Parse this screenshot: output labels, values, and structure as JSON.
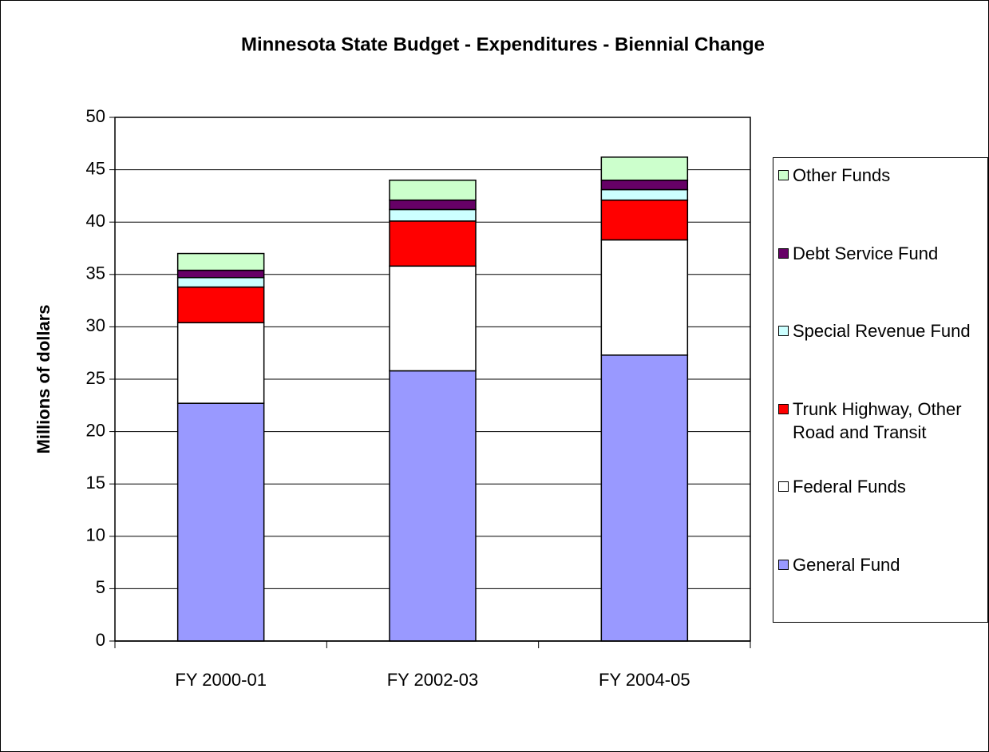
{
  "chart_data": {
    "type": "stacked_bar",
    "title": "Minnesota State Budget - Expenditures - Biennial Change",
    "y_label": "Millions of dollars",
    "categories": [
      "FY 2000-01",
      "FY 2002-03",
      "FY 2004-05"
    ],
    "series": [
      {
        "name": "General Fund",
        "color": "#9999ff",
        "values": [
          22.7,
          25.8,
          27.3
        ]
      },
      {
        "name": "Federal Funds",
        "color": "#ffffff",
        "values": [
          7.7,
          10.0,
          11.0
        ]
      },
      {
        "name": "Trunk Highway, Other Road and Transit",
        "color": "#ff0000",
        "values": [
          3.4,
          4.3,
          3.8
        ]
      },
      {
        "name": "Special Revenue Fund",
        "color": "#ccffff",
        "values": [
          0.9,
          1.1,
          1.0
        ]
      },
      {
        "name": "Debt Service Fund",
        "color": "#660066",
        "values": [
          0.7,
          0.9,
          0.9
        ]
      },
      {
        "name": "Other Funds",
        "color": "#ccffcc",
        "values": [
          1.6,
          1.9,
          2.2
        ]
      }
    ],
    "ylim": [
      0,
      50
    ],
    "yticks": [
      0,
      5,
      10,
      15,
      20,
      25,
      30,
      35,
      40,
      45,
      50
    ],
    "grid": true,
    "legend": "right"
  }
}
